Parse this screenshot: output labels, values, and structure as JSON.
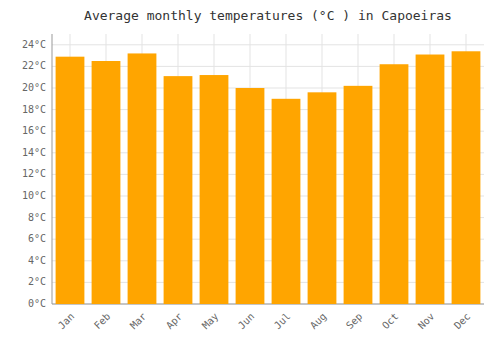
{
  "chart_data": {
    "type": "bar",
    "title": "Average monthly temperatures (°C ) in Capoeiras",
    "categories": [
      "Jan",
      "Feb",
      "Mar",
      "Apr",
      "May",
      "Jun",
      "Jul",
      "Aug",
      "Sep",
      "Oct",
      "Nov",
      "Dec"
    ],
    "values": [
      22.9,
      22.5,
      23.2,
      21.1,
      21.2,
      20.0,
      19.0,
      19.6,
      20.2,
      22.2,
      23.1,
      23.4
    ],
    "color": "#FFA500",
    "ylim": [
      0,
      25
    ],
    "yticks": [
      {
        "value": 0,
        "label": "0°C"
      },
      {
        "value": 2,
        "label": "2°C"
      },
      {
        "value": 4,
        "label": "4°C"
      },
      {
        "value": 6,
        "label": "6°C"
      },
      {
        "value": 8,
        "label": "8°C"
      },
      {
        "value": 10,
        "label": "10°C"
      },
      {
        "value": 12,
        "label": "12°C"
      },
      {
        "value": 14,
        "label": "14°C"
      },
      {
        "value": 16,
        "label": "16°C"
      },
      {
        "value": 18,
        "label": "18°C"
      },
      {
        "value": 20,
        "label": "20°C"
      },
      {
        "value": 22,
        "label": "22°C"
      },
      {
        "value": 24,
        "label": "24°C"
      }
    ],
    "grid": true
  }
}
